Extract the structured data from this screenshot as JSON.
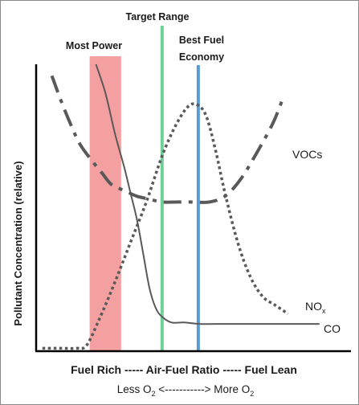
{
  "chart_data": {
    "type": "line",
    "title": "",
    "ylabel": "Pollutant Concentration (relative)",
    "xlabel": "Fuel Rich ----- Air-Fuel Ratio ----- Fuel Lean",
    "xlabel_secondary": {
      "left_text": "Less O",
      "left_sub": "2",
      "middle_text": " <-----------> More O",
      "right_sub": "2"
    },
    "xlim": [
      0,
      100
    ],
    "ylim": [
      0,
      100
    ],
    "grid": false,
    "regions": [
      {
        "label": "Most Power",
        "x_start": 17,
        "x_end": 27,
        "color": "#f4a0a0"
      }
    ],
    "vertical_lines": [
      {
        "label": "Target Range",
        "x": 40,
        "color": "#6fcf97"
      },
      {
        "label_line1": "Best Fuel",
        "label_line2": "Economy",
        "x": 51.5,
        "color": "#5b9bd5"
      }
    ],
    "series": [
      {
        "name": "CO",
        "style": "solid",
        "color": "#595959",
        "x": [
          19,
          22,
          25,
          28,
          30,
          32,
          34,
          36,
          38,
          40,
          43,
          47,
          52,
          60,
          70,
          80,
          90
        ],
        "y": [
          100,
          90,
          76,
          64,
          55,
          46,
          34,
          22,
          15,
          12,
          10,
          10,
          9.5,
          9.5,
          9.5,
          9.5,
          9.5
        ]
      },
      {
        "name": "VOCs",
        "name_display": "VOCs",
        "style": "dashdot",
        "color": "#595959",
        "x": [
          5,
          8,
          11,
          14,
          18,
          21,
          24,
          28,
          32,
          36,
          40,
          45,
          50,
          55,
          60,
          65,
          70,
          75,
          78
        ],
        "y": [
          96,
          87,
          79,
          72,
          66,
          62,
          58,
          56,
          54,
          53,
          52,
          52,
          52,
          52,
          54,
          60,
          69,
          79,
          87
        ]
      },
      {
        "name": "NOx",
        "name_display_text": "NO",
        "name_display_sub": "x",
        "style": "dotted",
        "color": "#595959",
        "x": [
          2,
          8,
          13,
          16,
          20,
          25,
          30,
          35,
          40,
          44,
          48,
          51,
          54,
          57,
          60,
          64,
          68,
          72,
          76,
          80
        ],
        "y": [
          1,
          1,
          1,
          2,
          11,
          24,
          38,
          52,
          68,
          78,
          85,
          86,
          82,
          70,
          55,
          38,
          26,
          19,
          16,
          13
        ]
      }
    ]
  }
}
